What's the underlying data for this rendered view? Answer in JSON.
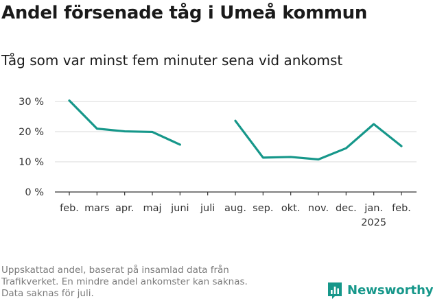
{
  "header": {
    "title": "Andel försenade tåg i Umeå kommun",
    "subtitle": "Tåg som var minst fem minuter sena vid ankomst"
  },
  "footnote": {
    "lines": [
      "Uppskattad andel, baserat på insamlad data från",
      "Trafikverket. En mindre andel ankomster kan saknas.",
      "Data saknas för juli."
    ]
  },
  "brand": {
    "name": "Newsworthy",
    "logo_icon": "bar-chart-icon",
    "color": "#16978a"
  },
  "chart_data": {
    "type": "line",
    "categories": [
      "feb.",
      "mars",
      "apr.",
      "maj",
      "juni",
      "juli",
      "aug.",
      "sep.",
      "okt.",
      "nov.",
      "dec.",
      "jan.",
      "feb."
    ],
    "category_sublabels": [
      "",
      "",
      "",
      "",
      "",
      "",
      "",
      "",
      "",
      "",
      "",
      "2025",
      ""
    ],
    "series": [
      {
        "values": [
          30.3,
          21.0,
          20.1,
          19.9,
          15.7,
          null,
          23.6,
          11.4,
          11.6,
          10.8,
          14.5,
          22.5,
          15.2
        ],
        "color": "#16978a"
      }
    ],
    "ylim": [
      0,
      30
    ],
    "yticks": [
      0,
      10,
      20,
      30
    ],
    "ytick_labels": [
      "0 %",
      "10 %",
      "20 %",
      "30 %"
    ],
    "grid": true,
    "title": "",
    "xlabel": "",
    "ylabel": ""
  }
}
